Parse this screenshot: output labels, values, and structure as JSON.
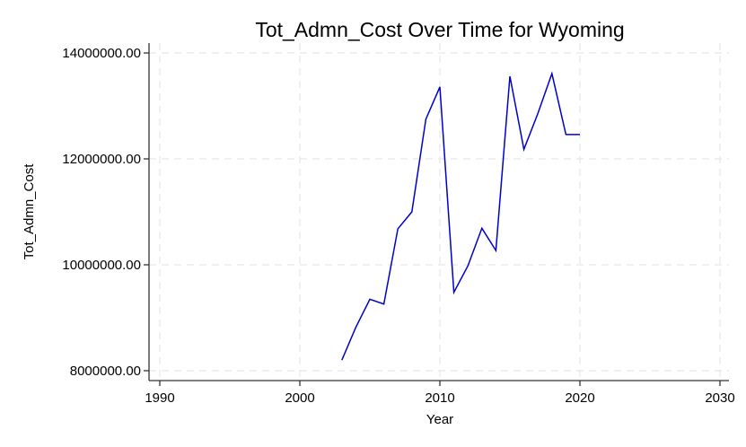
{
  "chart_data": {
    "type": "line",
    "title": "Tot_Admn_Cost Over Time for Wyoming",
    "xlabel": "Year",
    "ylabel": "Tot_Admn_Cost",
    "xlim": [
      1990,
      2030
    ],
    "ylim": [
      8000000,
      14000000
    ],
    "xticks": [
      1990,
      2000,
      2010,
      2020,
      2030
    ],
    "xtick_labels": [
      "1990",
      "2000",
      "2010",
      "2020",
      "2030"
    ],
    "yticks": [
      8000000,
      10000000,
      12000000,
      14000000
    ],
    "ytick_labels": [
      "8000000.00",
      "10000000.00",
      "12000000.00",
      "14000000.00"
    ],
    "grid": true,
    "series": [
      {
        "color": "#0000cd",
        "x": [
          2003,
          2004,
          2005,
          2006,
          2007,
          2008,
          2009,
          2010,
          2011,
          2012,
          2013,
          2014,
          2015,
          2016,
          2017,
          2018,
          2019,
          2020
        ],
        "y": [
          8200000,
          8820000,
          9350000,
          9260000,
          10680000,
          11000000,
          12750000,
          13360000,
          9480000,
          9980000,
          10690000,
          10270000,
          13560000,
          12180000,
          12860000,
          13610000,
          12460000,
          12460000
        ]
      }
    ]
  }
}
